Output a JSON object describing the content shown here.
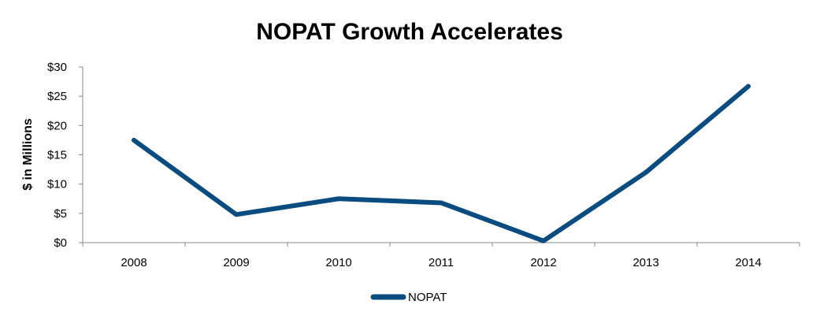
{
  "chart_data": {
    "type": "line",
    "title": "NOPAT Growth Accelerates",
    "xlabel": "",
    "ylabel": "$ in Millions",
    "categories": [
      "2008",
      "2009",
      "2010",
      "2011",
      "2012",
      "2013",
      "2014"
    ],
    "series": [
      {
        "name": "NOPAT",
        "values": [
          17.5,
          4.8,
          7.5,
          6.8,
          0.3,
          12.0,
          26.7
        ],
        "color": "#0b4c80"
      }
    ],
    "ylim": [
      0,
      30
    ],
    "yticks": [
      0,
      5,
      10,
      15,
      20,
      25,
      30
    ],
    "ytick_labels": [
      "$0",
      "$5",
      "$10",
      "$15",
      "$20",
      "$25",
      "$30"
    ],
    "grid": false,
    "legend_position": "bottom-center"
  }
}
